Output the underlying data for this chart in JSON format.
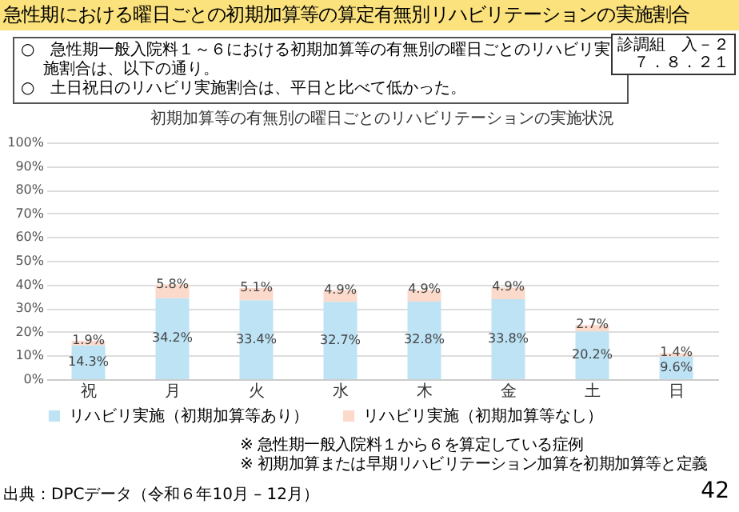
{
  "chart_data": {
    "type": "bar",
    "title": "急性期における曜日ごとの初期加算等の算定有無別リハビリテーションの実施割合",
    "subtitle": "初期加算等の有無別の曜日ごとのリハビリテーションの実施状況",
    "annotations": [
      "○　急性期一般入院料１～６における初期加算等の有無別の曜日ごとのリハビリ実施割合は、以下の通り。",
      "○　土日祝日のリハビリ実施割合は、平日と比べて低かった。",
      "診調組　入－２",
      "７．８．２１",
      "※ 急性期一般入院料１から６を算定している症例",
      "※ 初期加算または早期リハビリテーション加算を初期加算等と定義",
      "出典：DPCデータ（令和６年10月 – 12月）",
      "42"
    ],
    "categories": [
      "祝",
      "月",
      "火",
      "水",
      "木",
      "金",
      "土",
      "日"
    ],
    "stacked": true,
    "series": [
      {
        "name": "リハビリ実施（初期加算等あり）",
        "color": "#bde3f5",
        "values": [
          14.3,
          34.2,
          33.4,
          32.7,
          32.8,
          33.8,
          20.2,
          9.6
        ],
        "value_labels": [
          "14.3%",
          "34.2%",
          "33.4%",
          "32.7%",
          "32.8%",
          "33.8%",
          "20.2%",
          "9.6%"
        ]
      },
      {
        "name": "リハビリ実施（初期加算等なし）",
        "color": "#fbdacb",
        "values": [
          1.9,
          5.8,
          5.1,
          4.9,
          4.9,
          4.9,
          2.7,
          1.4
        ],
        "value_labels": [
          "1.9%",
          "5.8%",
          "5.1%",
          "4.9%",
          "4.9%",
          "4.9%",
          "2.7%",
          "1.4%"
        ]
      }
    ],
    "ylim": [
      0,
      100
    ],
    "yticks": [
      {
        "value": 0,
        "label": "0%"
      },
      {
        "value": 10,
        "label": "10%"
      },
      {
        "value": 20,
        "label": "20%"
      },
      {
        "value": 30,
        "label": "30%"
      },
      {
        "value": 40,
        "label": "40%"
      },
      {
        "value": 50,
        "label": "50%"
      },
      {
        "value": 60,
        "label": "60%"
      },
      {
        "value": 70,
        "label": "70%"
      },
      {
        "value": 80,
        "label": "80%"
      },
      {
        "value": 90,
        "label": "90%"
      },
      {
        "value": 100,
        "label": "100%"
      }
    ],
    "grid": "y",
    "legend": "bottom"
  }
}
